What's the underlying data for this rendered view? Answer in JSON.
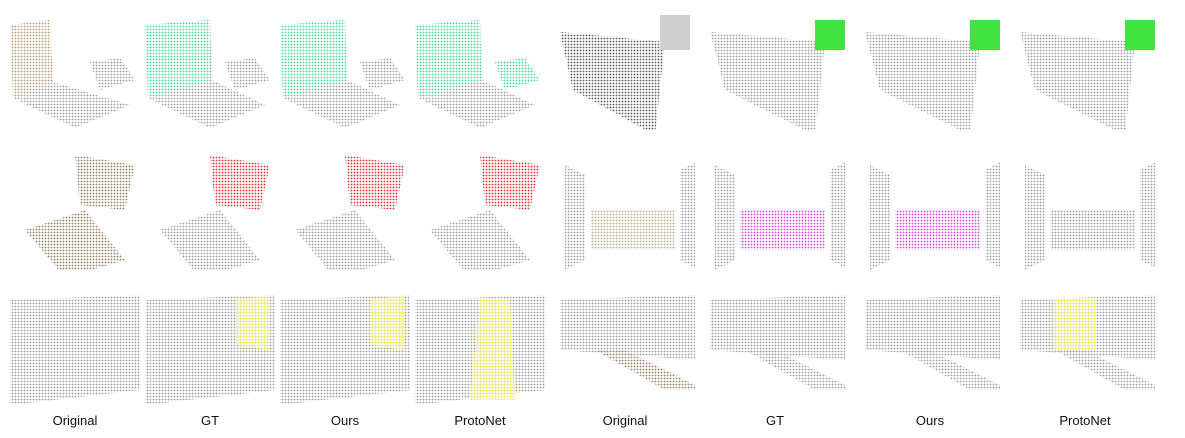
{
  "figure": {
    "left_group_labels": [
      "Original",
      "GT",
      "Ours",
      "ProtoNet"
    ],
    "right_group_labels": [
      "Original",
      "GT",
      "Ours",
      "ProtoNet"
    ]
  },
  "colors": {
    "gray_points": "#a8a8a8",
    "green_class": "#3fd494",
    "red_class": "#e42a2a",
    "yellow_class": "#f2ee2a",
    "magenta_class": "#e23ee2",
    "bright_green_class": "#41e241"
  }
}
